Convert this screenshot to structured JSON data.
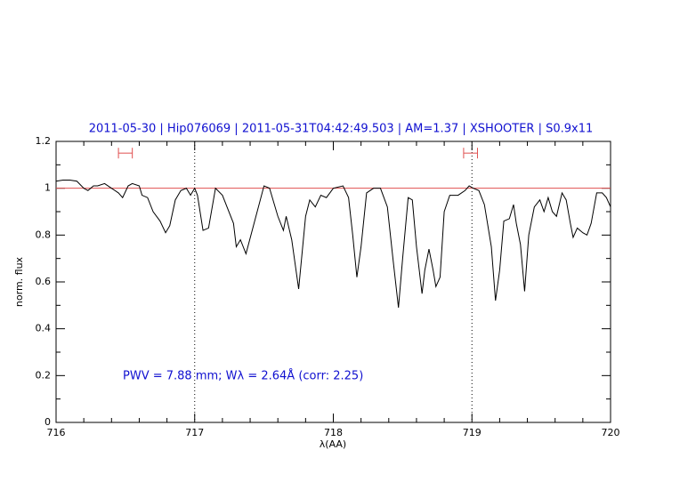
{
  "chart_data": {
    "type": "line",
    "title": "2011-05-30 | Hip076069 | 2011-05-31T04:42:49.503 | AM=1.37 | XSHOOTER | S0.9x11",
    "xlabel": "λ(AA)",
    "ylabel": "norm. flux",
    "annotation": "PWV = 7.88 mm; Wλ = 2.64Å (corr: 2.25)",
    "xlim": [
      716,
      720
    ],
    "ylim": [
      0,
      1.2
    ],
    "xticks": [
      716,
      717,
      718,
      719,
      720
    ],
    "yticks": [
      0,
      0.2,
      0.4,
      0.6,
      0.8,
      1,
      1.2
    ],
    "xminorticks": [
      716.2,
      716.4,
      716.6,
      716.8,
      717.2,
      717.4,
      717.6,
      717.8,
      718.2,
      718.4,
      718.6,
      718.8,
      719.2,
      719.4,
      719.6,
      719.8
    ],
    "yminorticks": [
      0.1,
      0.3,
      0.5,
      0.7,
      0.9,
      1.1
    ],
    "reference_line": {
      "value": 1,
      "color": "#e05050"
    },
    "vlines": [
      717,
      719
    ],
    "windows": {
      "level": 1.15,
      "color": "#e05050",
      "ranges": [
        [
          716.45,
          716.55
        ],
        [
          718.94,
          719.04
        ]
      ]
    },
    "x": [
      716.0,
      716.05,
      716.1,
      716.15,
      716.2,
      716.23,
      716.27,
      716.3,
      716.35,
      716.4,
      716.45,
      716.48,
      716.52,
      716.55,
      716.6,
      716.62,
      716.66,
      716.7,
      716.75,
      716.79,
      716.82,
      716.86,
      716.9,
      716.94,
      716.97,
      717.0,
      717.02,
      717.06,
      717.1,
      717.15,
      717.2,
      717.28,
      717.3,
      717.33,
      717.37,
      717.5,
      717.54,
      717.6,
      717.64,
      717.66,
      717.7,
      717.75,
      717.8,
      717.83,
      717.87,
      717.91,
      717.95,
      718.0,
      718.07,
      718.11,
      718.14,
      718.17,
      718.2,
      718.24,
      718.29,
      718.34,
      718.39,
      718.43,
      718.47,
      718.5,
      718.54,
      718.57,
      718.6,
      718.64,
      718.66,
      718.69,
      718.72,
      718.74,
      718.77,
      718.8,
      718.84,
      718.9,
      718.95,
      718.98,
      719.01,
      719.05,
      719.09,
      719.14,
      719.17,
      719.2,
      719.23,
      719.27,
      719.3,
      719.32,
      719.35,
      719.38,
      719.41,
      719.45,
      719.49,
      719.52,
      719.55,
      719.58,
      719.61,
      719.65,
      719.68,
      719.71,
      719.73,
      719.76,
      719.8,
      719.83,
      719.86,
      719.9,
      719.94,
      719.97,
      720.0
    ],
    "series": [
      {
        "color": "#000000",
        "values": [
          1.03,
          1.035,
          1.035,
          1.03,
          1.0,
          0.99,
          1.01,
          1.01,
          1.02,
          1.0,
          0.98,
          0.96,
          1.01,
          1.02,
          1.01,
          0.97,
          0.96,
          0.9,
          0.86,
          0.81,
          0.84,
          0.95,
          0.99,
          1.0,
          0.97,
          1.0,
          0.97,
          0.82,
          0.83,
          1.0,
          0.97,
          0.85,
          0.75,
          0.78,
          0.72,
          1.01,
          1.0,
          0.88,
          0.82,
          0.88,
          0.78,
          0.57,
          0.88,
          0.95,
          0.92,
          0.97,
          0.96,
          1.0,
          1.01,
          0.96,
          0.8,
          0.62,
          0.75,
          0.98,
          1.0,
          1.0,
          0.92,
          0.7,
          0.49,
          0.7,
          0.96,
          0.95,
          0.75,
          0.55,
          0.65,
          0.74,
          0.65,
          0.58,
          0.62,
          0.9,
          0.97,
          0.97,
          0.99,
          1.01,
          1.0,
          0.99,
          0.93,
          0.75,
          0.52,
          0.65,
          0.86,
          0.87,
          0.93,
          0.85,
          0.76,
          0.56,
          0.8,
          0.92,
          0.95,
          0.9,
          0.96,
          0.9,
          0.88,
          0.98,
          0.95,
          0.85,
          0.79,
          0.83,
          0.81,
          0.8,
          0.85,
          0.98,
          0.98,
          0.96,
          0.92
        ]
      }
    ]
  }
}
